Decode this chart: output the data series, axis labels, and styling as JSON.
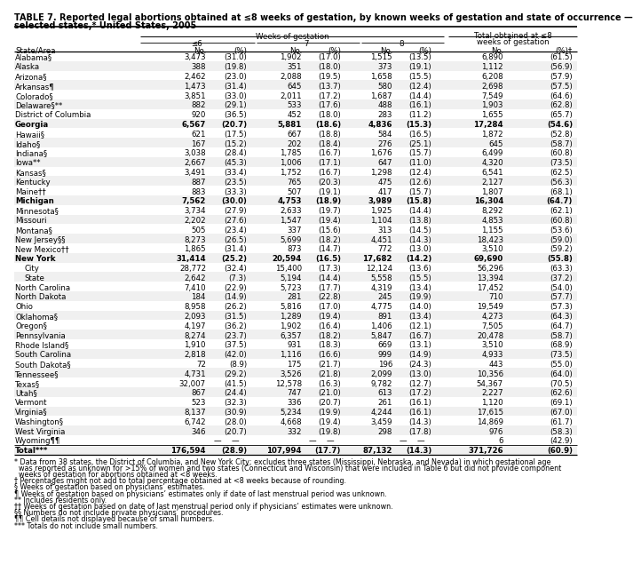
{
  "title_line1": "TABLE 7. Reported legal abortions obtained at ≤8 weeks of gestation, by known weeks of gestation and state of occurrence —",
  "title_line2": "selected states,* United States, 2005",
  "rows": [
    [
      "Alabama§",
      "3,473",
      "(31.0)",
      "1,902",
      "(17.0)",
      "1,515",
      "(13.5)",
      "6,890",
      "(61.5)"
    ],
    [
      "Alaska",
      "388",
      "(19.8)",
      "351",
      "(18.0)",
      "373",
      "(19.1)",
      "1,112",
      "(56.9)"
    ],
    [
      "Arizona§",
      "2,462",
      "(23.0)",
      "2,088",
      "(19.5)",
      "1,658",
      "(15.5)",
      "6,208",
      "(57.9)"
    ],
    [
      "Arkansas¶",
      "1,473",
      "(31.4)",
      "645",
      "(13.7)",
      "580",
      "(12.4)",
      "2,698",
      "(57.5)"
    ],
    [
      "Colorado§",
      "3,851",
      "(33.0)",
      "2,011",
      "(17.2)",
      "1,687",
      "(14.4)",
      "7,549",
      "(64.6)"
    ],
    [
      "Delaware§**",
      "882",
      "(29.1)",
      "533",
      "(17.6)",
      "488",
      "(16.1)",
      "1,903",
      "(62.8)"
    ],
    [
      "District of Columbia",
      "920",
      "(36.5)",
      "452",
      "(18.0)",
      "283",
      "(11.2)",
      "1,655",
      "(65.7)"
    ],
    [
      "Georgia",
      "6,567",
      "(20.7)",
      "5,881",
      "(18.6)",
      "4,836",
      "(15.3)",
      "17,284",
      "(54.6)"
    ],
    [
      "Hawaii§",
      "621",
      "(17.5)",
      "667",
      "(18.8)",
      "584",
      "(16.5)",
      "1,872",
      "(52.8)"
    ],
    [
      "Idaho§",
      "167",
      "(15.2)",
      "202",
      "(18.4)",
      "276",
      "(25.1)",
      "645",
      "(58.7)"
    ],
    [
      "Indiana§",
      "3,038",
      "(28.4)",
      "1,785",
      "(16.7)",
      "1,676",
      "(15.7)",
      "6,499",
      "(60.8)"
    ],
    [
      "Iowa**",
      "2,667",
      "(45.3)",
      "1,006",
      "(17.1)",
      "647",
      "(11.0)",
      "4,320",
      "(73.5)"
    ],
    [
      "Kansas§",
      "3,491",
      "(33.4)",
      "1,752",
      "(16.7)",
      "1,298",
      "(12.4)",
      "6,541",
      "(62.5)"
    ],
    [
      "Kentucky",
      "887",
      "(23.5)",
      "765",
      "(20.3)",
      "475",
      "(12.6)",
      "2,127",
      "(56.3)"
    ],
    [
      "Maine††",
      "883",
      "(33.3)",
      "507",
      "(19.1)",
      "417",
      "(15.7)",
      "1,807",
      "(68.1)"
    ],
    [
      "Michigan",
      "7,562",
      "(30.0)",
      "4,753",
      "(18.9)",
      "3,989",
      "(15.8)",
      "16,304",
      "(64.7)"
    ],
    [
      "Minnesota§",
      "3,734",
      "(27.9)",
      "2,633",
      "(19.7)",
      "1,925",
      "(14.4)",
      "8,292",
      "(62.1)"
    ],
    [
      "Missouri",
      "2,202",
      "(27.6)",
      "1,547",
      "(19.4)",
      "1,104",
      "(13.8)",
      "4,853",
      "(60.8)"
    ],
    [
      "Montana§",
      "505",
      "(23.4)",
      "337",
      "(15.6)",
      "313",
      "(14.5)",
      "1,155",
      "(53.6)"
    ],
    [
      "New Jersey§§",
      "8,273",
      "(26.5)",
      "5,699",
      "(18.2)",
      "4,451",
      "(14.3)",
      "18,423",
      "(59.0)"
    ],
    [
      "New Mexico††",
      "1,865",
      "(31.4)",
      "873",
      "(14.7)",
      "772",
      "(13.0)",
      "3,510",
      "(59.2)"
    ],
    [
      "New York",
      "31,414",
      "(25.2)",
      "20,594",
      "(16.5)",
      "17,682",
      "(14.2)",
      "69,690",
      "(55.8)"
    ],
    [
      "  City",
      "28,772",
      "(32.4)",
      "15,400",
      "(17.3)",
      "12,124",
      "(13.6)",
      "56,296",
      "(63.3)"
    ],
    [
      "  State",
      "2,642",
      "(7.3)",
      "5,194",
      "(14.4)",
      "5,558",
      "(15.5)",
      "13,394",
      "(37.2)"
    ],
    [
      "North Carolina",
      "7,410",
      "(22.9)",
      "5,723",
      "(17.7)",
      "4,319",
      "(13.4)",
      "17,452",
      "(54.0)"
    ],
    [
      "North Dakota",
      "184",
      "(14.9)",
      "281",
      "(22.8)",
      "245",
      "(19.9)",
      "710",
      "(57.7)"
    ],
    [
      "Ohio",
      "8,958",
      "(26.2)",
      "5,816",
      "(17.0)",
      "4,775",
      "(14.0)",
      "19,549",
      "(57.3)"
    ],
    [
      "Oklahoma§",
      "2,093",
      "(31.5)",
      "1,289",
      "(19.4)",
      "891",
      "(13.4)",
      "4,273",
      "(64.3)"
    ],
    [
      "Oregon§",
      "4,197",
      "(36.2)",
      "1,902",
      "(16.4)",
      "1,406",
      "(12.1)",
      "7,505",
      "(64.7)"
    ],
    [
      "Pennsylvania",
      "8,274",
      "(23.7)",
      "6,357",
      "(18.2)",
      "5,847",
      "(16.7)",
      "20,478",
      "(58.7)"
    ],
    [
      "Rhode Island§",
      "1,910",
      "(37.5)",
      "931",
      "(18.3)",
      "669",
      "(13.1)",
      "3,510",
      "(68.9)"
    ],
    [
      "South Carolina",
      "2,818",
      "(42.0)",
      "1,116",
      "(16.6)",
      "999",
      "(14.9)",
      "4,933",
      "(73.5)"
    ],
    [
      "South Dakota§",
      "72",
      "(8.9)",
      "175",
      "(21.7)",
      "196",
      "(24.3)",
      "443",
      "(55.0)"
    ],
    [
      "Tennessee§",
      "4,731",
      "(29.2)",
      "3,526",
      "(21.8)",
      "2,099",
      "(13.0)",
      "10,356",
      "(64.0)"
    ],
    [
      "Texas§",
      "32,007",
      "(41.5)",
      "12,578",
      "(16.3)",
      "9,782",
      "(12.7)",
      "54,367",
      "(70.5)"
    ],
    [
      "Utah§",
      "867",
      "(24.4)",
      "747",
      "(21.0)",
      "613",
      "(17.2)",
      "2,227",
      "(62.6)"
    ],
    [
      "Vermont",
      "523",
      "(32.3)",
      "336",
      "(20.7)",
      "261",
      "(16.1)",
      "1,120",
      "(69.1)"
    ],
    [
      "Virginia§",
      "8,137",
      "(30.9)",
      "5,234",
      "(19.9)",
      "4,244",
      "(16.1)",
      "17,615",
      "(67.0)"
    ],
    [
      "Washington§",
      "6,742",
      "(28.0)",
      "4,668",
      "(19.4)",
      "3,459",
      "(14.3)",
      "14,869",
      "(61.7)"
    ],
    [
      "West Virginia",
      "346",
      "(20.7)",
      "332",
      "(19.8)",
      "298",
      "(17.8)",
      "976",
      "(58.3)"
    ],
    [
      "Wyoming¶¶",
      "—",
      "—",
      "—",
      "—",
      "—",
      "—",
      "6",
      "(42.9)"
    ],
    [
      "Total***",
      "176,594",
      "(28.9)",
      "107,994",
      "(17.7)",
      "87,132",
      "(14.3)",
      "371,726",
      "(60.9)"
    ]
  ],
  "bold_states": [
    "Georgia",
    "Michigan",
    "New York",
    "Total***"
  ],
  "footnotes": [
    "* Data from 38 states, the District of Columbia, and New York City; excludes three states (Mississippi, Nebraska, and Nevada) in which gestational age",
    "  was reported as unknown for >15% of women and two states (Connecticut and Wisconsin) that were included in Table 6 but did not provide component",
    "  weeks of gestation for abortions obtained at <8 weeks.",
    "† Percentages might not add to total percentage obtained at <8 weeks because of rounding.",
    "§ Weeks of gestation based on physicians’ estimates.",
    "¶ Weeks of gestation based on physicians’ estimates only if date of last menstrual period was unknown.",
    "** Includes residents only.",
    "†† Weeks of gestation based on date of last menstrual period only if physicians’ estimates were unknown.",
    "§§ Numbers do not include private physicians’ procedures.",
    "¶¶ Cell details not displayed because of small numbers.",
    "*** Totals do not include small numbers."
  ]
}
